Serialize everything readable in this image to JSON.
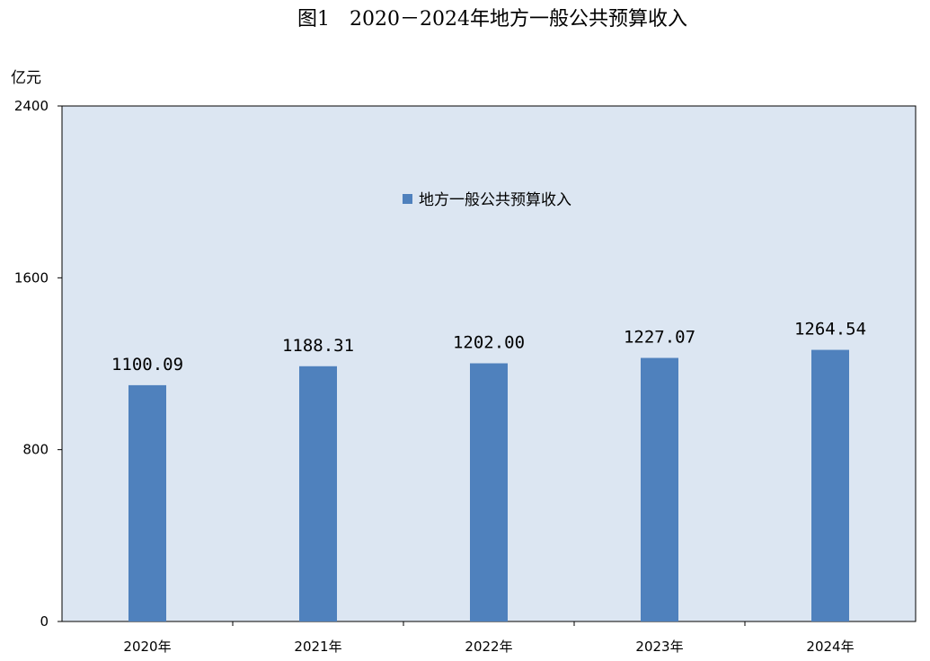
{
  "colors": {
    "plot_background": "#dce6f2",
    "bar": "#4f81bd",
    "axis": "#000000"
  },
  "chart_data": {
    "type": "bar",
    "title": "图1　2020－2024年地方一般公共预算收入",
    "ylabel": "亿元",
    "xlabel": "",
    "categories": [
      "2020年",
      "2021年",
      "2022年",
      "2023年",
      "2024年"
    ],
    "series": [
      {
        "name": "地方一般公共预算收入",
        "values": [
          1100.09,
          1188.31,
          1202.0,
          1227.07,
          1264.54
        ],
        "labels": [
          "1100.09",
          "1188.31",
          "1202.00",
          "1227.07",
          "1264.54"
        ]
      }
    ],
    "ylim": [
      0,
      2400
    ],
    "yticks": [
      "0",
      "800",
      "1600",
      "2400"
    ],
    "grid": false,
    "legend_position": "top-center"
  }
}
